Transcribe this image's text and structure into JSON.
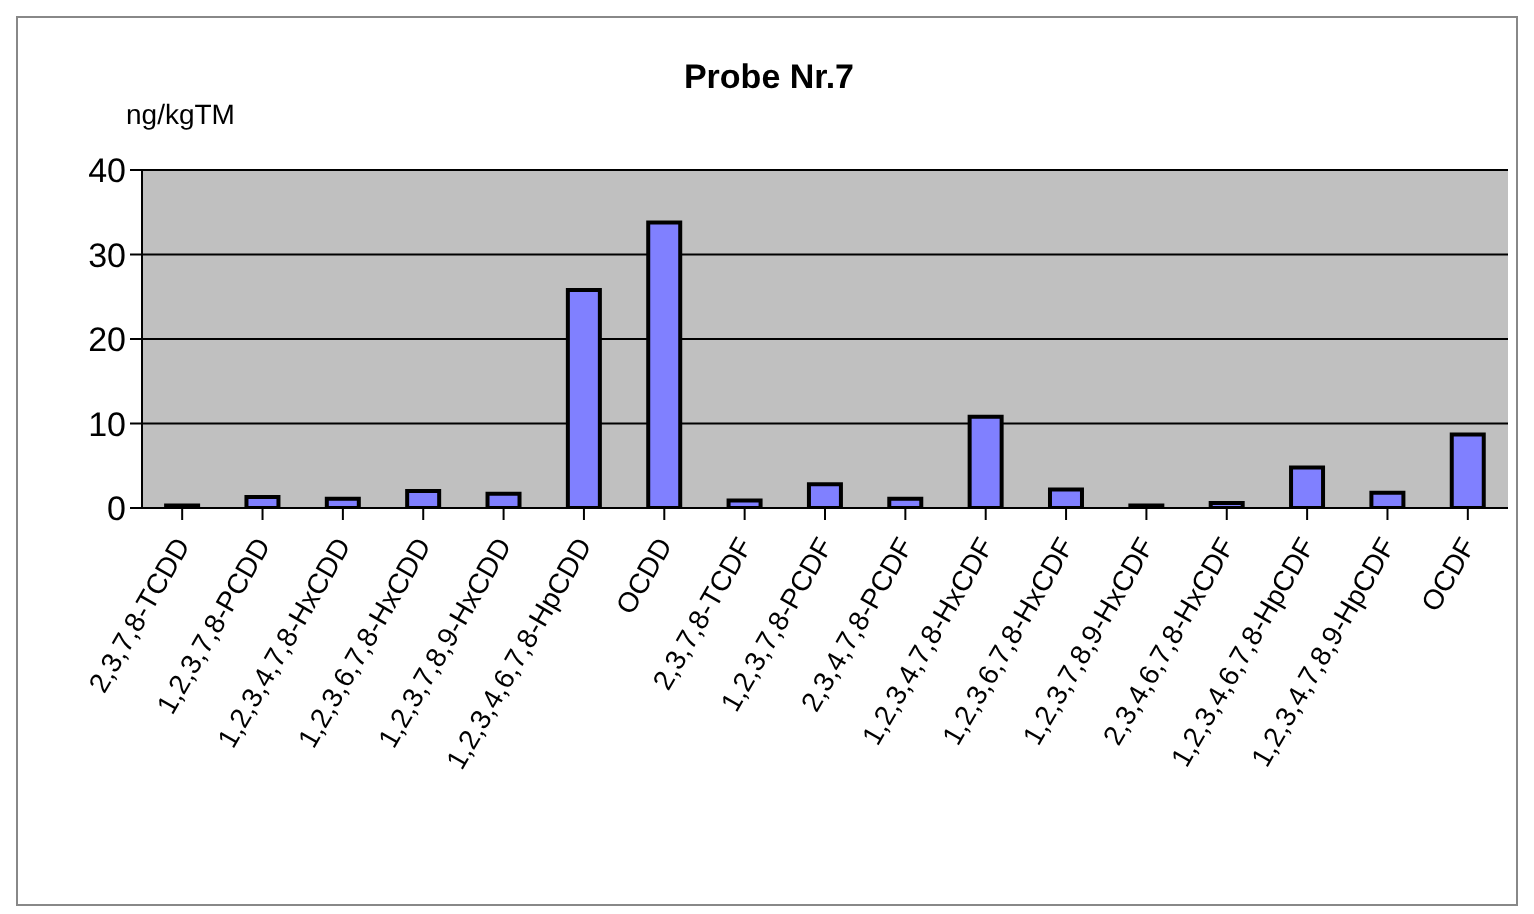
{
  "chart_data": {
    "type": "bar",
    "title": "Probe Nr.7",
    "ylabel": "ng/kgTM",
    "categories": [
      "2,3,7,8-TCDD",
      "1,2,3,7,8-PCDD",
      "1,2,3,4,7,8-HxCDD",
      "1,2,3,6,7,8-HxCDD",
      "1,2,3,7,8,9-HxCDD",
      "1,2,3,4,6,7,8-HpCDD",
      "OCDD",
      "2,3,7,8-TCDF",
      "1,2,3,7,8-PCDF",
      "2,3,4,7,8-PCDF",
      "1,2,3,4,7,8-HxCDF",
      "1,2,3,6,7,8-HxCDF",
      "1,2,3,7,8,9-HxCDF",
      "2,3,4,6,7,8-HxCDF",
      "1,2,3,4,6,7,8-HpCDF",
      "1,2,3,4,7,8,9-HpCDF",
      "OCDF"
    ],
    "values": [
      0.3,
      1.3,
      1.1,
      2.0,
      1.7,
      25.8,
      33.8,
      0.9,
      2.8,
      1.1,
      10.8,
      2.2,
      0.3,
      0.6,
      4.8,
      1.8,
      8.7
    ],
    "color": "#8080ff",
    "ylim": [
      0,
      40
    ],
    "yticks": [
      0,
      10,
      20,
      30,
      40
    ],
    "grid": "y",
    "legend": false
  }
}
